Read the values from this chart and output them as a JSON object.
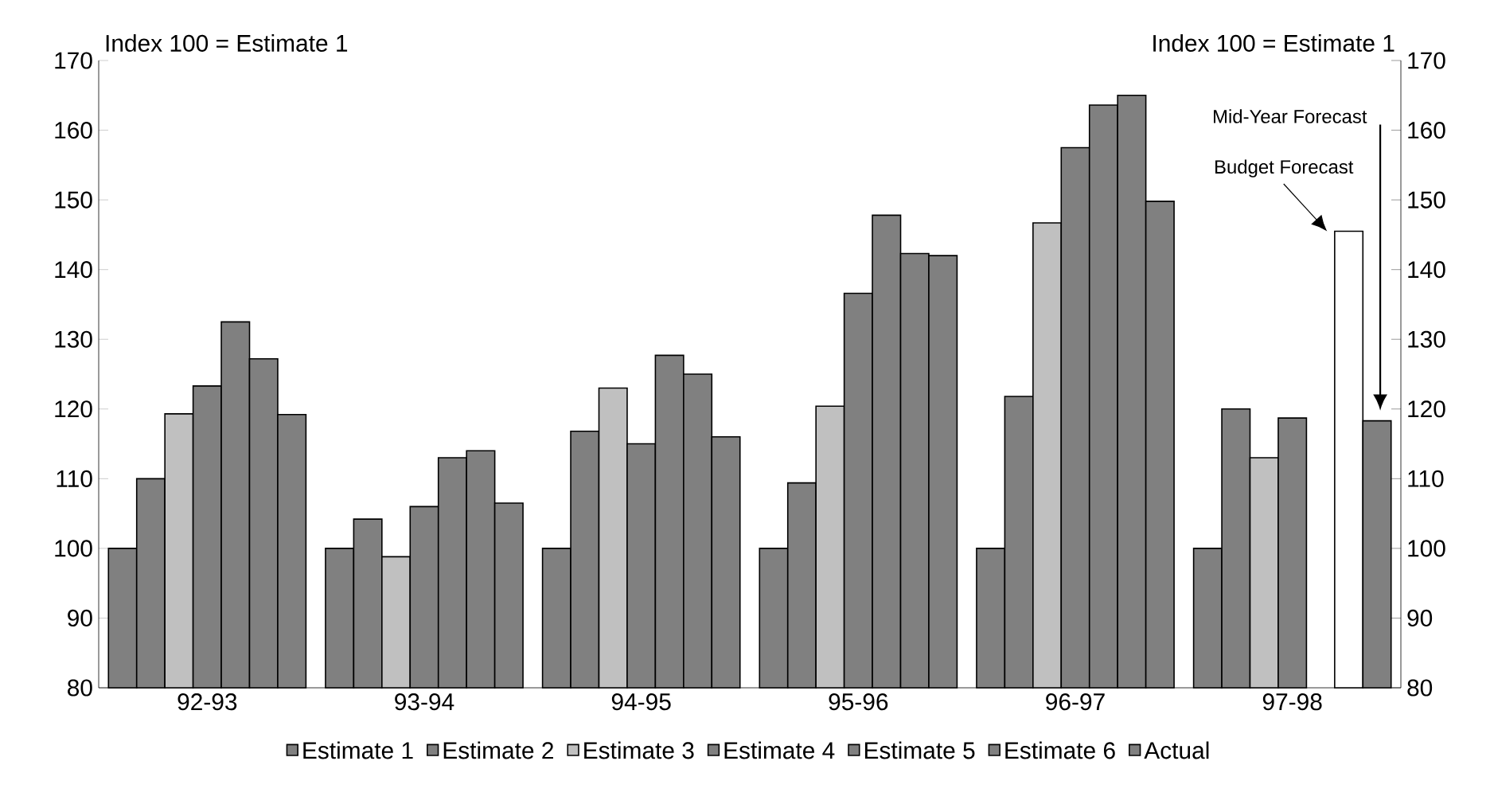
{
  "chart_data": {
    "type": "bar",
    "ylabel": "Index 100 = Estimate 1",
    "y2label": "Index 100 = Estimate 1",
    "categories": [
      "92-93",
      "93-94",
      "94-95",
      "95-96",
      "96-97",
      "97-98"
    ],
    "series": [
      {
        "name": "Estimate 1",
        "color": "#808080",
        "values": [
          100,
          100,
          100,
          100,
          100,
          100
        ]
      },
      {
        "name": "Estimate 2",
        "color": "#808080",
        "values": [
          110,
          104.2,
          116.8,
          109.4,
          121.8,
          120
        ]
      },
      {
        "name": "Estimate 3",
        "color": "#c0c0c0",
        "values": [
          119.3,
          98.8,
          123,
          120.4,
          146.7,
          113
        ]
      },
      {
        "name": "Estimate 4",
        "color": "#808080",
        "values": [
          123.3,
          106,
          115,
          136.6,
          157.5,
          118.7
        ]
      },
      {
        "name": "Estimate 5",
        "color": "#808080",
        "values": [
          132.5,
          113,
          127.7,
          147.8,
          163.6,
          null
        ]
      },
      {
        "name": "Estimate 6",
        "color": "#808080",
        "colors": [
          "#808080",
          "#808080",
          "#808080",
          "#808080",
          "#808080",
          "#ffffff"
        ],
        "values": [
          127.2,
          114,
          125,
          142.3,
          165,
          145.5
        ]
      },
      {
        "name": "Actual",
        "color": "#808080",
        "values": [
          119.2,
          106.5,
          116,
          142,
          149.8,
          118.3
        ]
      }
    ],
    "ylim": [
      80,
      170
    ],
    "yticks": [
      80,
      90,
      100,
      110,
      120,
      130,
      140,
      150,
      160,
      170
    ],
    "y2lim": [
      80,
      170
    ],
    "y2ticks": [
      80,
      90,
      100,
      110,
      120,
      130,
      140,
      150,
      160,
      170
    ],
    "annotations": [
      "Mid-Year Forecast",
      "Budget Forecast"
    ],
    "legend": "bottom",
    "grid": false
  }
}
